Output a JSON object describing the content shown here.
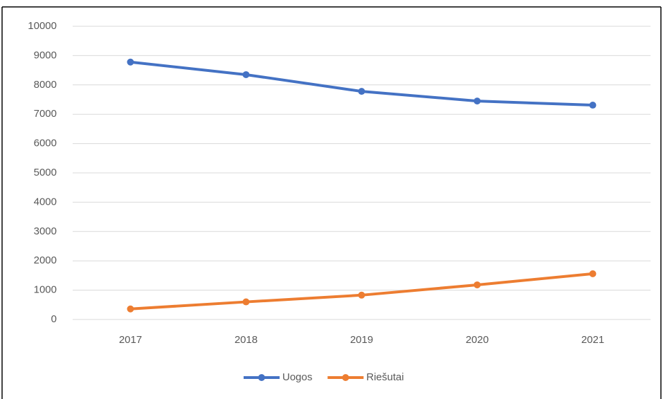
{
  "chart_data": {
    "type": "line",
    "categories": [
      "2017",
      "2018",
      "2019",
      "2020",
      "2021"
    ],
    "series": [
      {
        "name": "Uogos",
        "color": "#4472c4",
        "values": [
          8780,
          8350,
          7780,
          7450,
          7310
        ]
      },
      {
        "name": "Riešutai",
        "color": "#ed7d31",
        "values": [
          360,
          600,
          830,
          1180,
          1560
        ]
      }
    ],
    "ylim": [
      0,
      10000
    ],
    "yticks": [
      0,
      1000,
      2000,
      3000,
      4000,
      5000,
      6000,
      7000,
      8000,
      9000,
      10000
    ],
    "grid": true,
    "legend": "bottom"
  }
}
